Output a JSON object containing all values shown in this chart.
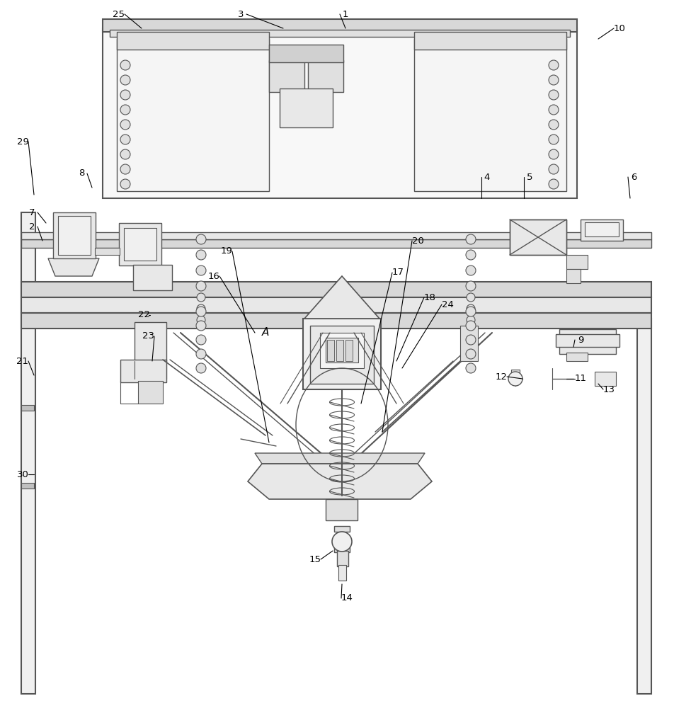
{
  "bg_color": "#ffffff",
  "line_color": "#555555",
  "fill_light": "#f0f0f0",
  "fill_medium": "#d8d8d8",
  "fill_dark": "#c0c0c0"
}
